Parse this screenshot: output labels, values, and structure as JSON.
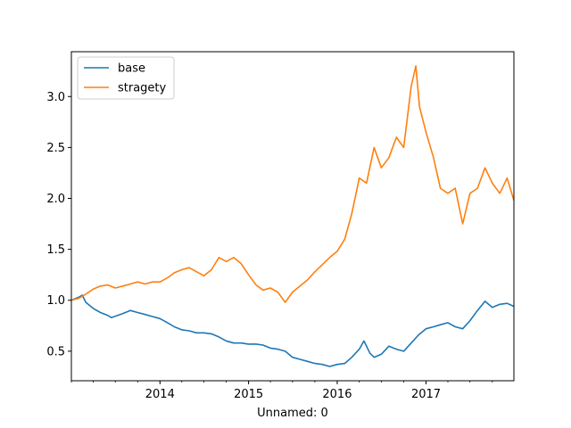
{
  "chart_data": {
    "type": "line",
    "title": "",
    "xlabel": "Unnamed: 0",
    "ylabel": "",
    "xlim": [
      "2013-01-01",
      "2017-12-29"
    ],
    "ylim": [
      0.21,
      3.44
    ],
    "grid": false,
    "legend_position": "top-left",
    "x_tick_labels": [
      "2014",
      "2015",
      "2016",
      "2017"
    ],
    "x_ticks": [
      "2014-01-01",
      "2015-01-01",
      "2016-01-01",
      "2017-01-01"
    ],
    "y_ticks": [
      0.5,
      1.0,
      1.5,
      2.0,
      2.5,
      3.0
    ],
    "y_tick_labels": [
      "0.5",
      "1.0",
      "1.5",
      "2.0",
      "2.5",
      "3.0"
    ],
    "series": [
      {
        "name": "base",
        "color": "#1f77b4",
        "points": [
          [
            "2013-01-01",
            1.0
          ],
          [
            "2013-02-01",
            1.03
          ],
          [
            "2013-02-15",
            1.05
          ],
          [
            "2013-03-01",
            0.98
          ],
          [
            "2013-04-01",
            0.92
          ],
          [
            "2013-05-01",
            0.88
          ],
          [
            "2013-06-01",
            0.85
          ],
          [
            "2013-06-15",
            0.83
          ],
          [
            "2013-08-01",
            0.87
          ],
          [
            "2013-09-01",
            0.9
          ],
          [
            "2013-10-01",
            0.88
          ],
          [
            "2013-11-01",
            0.86
          ],
          [
            "2013-12-01",
            0.84
          ],
          [
            "2014-01-01",
            0.82
          ],
          [
            "2014-02-01",
            0.78
          ],
          [
            "2014-03-01",
            0.74
          ],
          [
            "2014-04-01",
            0.71
          ],
          [
            "2014-05-01",
            0.7
          ],
          [
            "2014-06-01",
            0.68
          ],
          [
            "2014-07-01",
            0.68
          ],
          [
            "2014-08-01",
            0.67
          ],
          [
            "2014-09-01",
            0.64
          ],
          [
            "2014-10-01",
            0.6
          ],
          [
            "2014-11-01",
            0.58
          ],
          [
            "2014-12-01",
            0.58
          ],
          [
            "2015-01-01",
            0.57
          ],
          [
            "2015-02-01",
            0.57
          ],
          [
            "2015-03-01",
            0.56
          ],
          [
            "2015-04-01",
            0.53
          ],
          [
            "2015-05-01",
            0.52
          ],
          [
            "2015-06-01",
            0.5
          ],
          [
            "2015-07-01",
            0.44
          ],
          [
            "2015-08-01",
            0.42
          ],
          [
            "2015-09-01",
            0.4
          ],
          [
            "2015-10-01",
            0.38
          ],
          [
            "2015-11-01",
            0.37
          ],
          [
            "2015-12-01",
            0.35
          ],
          [
            "2016-01-01",
            0.37
          ],
          [
            "2016-02-01",
            0.38
          ],
          [
            "2016-03-01",
            0.44
          ],
          [
            "2016-04-01",
            0.52
          ],
          [
            "2016-04-20",
            0.6
          ],
          [
            "2016-05-15",
            0.48
          ],
          [
            "2016-06-01",
            0.44
          ],
          [
            "2016-07-01",
            0.47
          ],
          [
            "2016-08-01",
            0.55
          ],
          [
            "2016-09-01",
            0.52
          ],
          [
            "2016-10-01",
            0.5
          ],
          [
            "2016-11-01",
            0.58
          ],
          [
            "2016-12-01",
            0.66
          ],
          [
            "2017-01-01",
            0.72
          ],
          [
            "2017-02-01",
            0.74
          ],
          [
            "2017-03-01",
            0.76
          ],
          [
            "2017-04-01",
            0.78
          ],
          [
            "2017-05-01",
            0.74
          ],
          [
            "2017-06-01",
            0.72
          ],
          [
            "2017-07-01",
            0.8
          ],
          [
            "2017-08-01",
            0.9
          ],
          [
            "2017-09-01",
            0.99
          ],
          [
            "2017-10-01",
            0.93
          ],
          [
            "2017-11-01",
            0.96
          ],
          [
            "2017-12-01",
            0.97
          ],
          [
            "2017-12-29",
            0.94
          ]
        ]
      },
      {
        "name": "stragety",
        "color": "#ff7f0e",
        "points": [
          [
            "2013-01-01",
            1.0
          ],
          [
            "2013-02-01",
            1.02
          ],
          [
            "2013-03-01",
            1.06
          ],
          [
            "2013-04-01",
            1.11
          ],
          [
            "2013-05-01",
            1.14
          ],
          [
            "2013-06-01",
            1.15
          ],
          [
            "2013-07-01",
            1.12
          ],
          [
            "2013-08-01",
            1.14
          ],
          [
            "2013-09-01",
            1.16
          ],
          [
            "2013-10-01",
            1.18
          ],
          [
            "2013-11-01",
            1.16
          ],
          [
            "2013-12-01",
            1.18
          ],
          [
            "2014-01-01",
            1.18
          ],
          [
            "2014-02-01",
            1.22
          ],
          [
            "2014-03-01",
            1.27
          ],
          [
            "2014-04-01",
            1.3
          ],
          [
            "2014-05-01",
            1.32
          ],
          [
            "2014-06-01",
            1.28
          ],
          [
            "2014-07-01",
            1.24
          ],
          [
            "2014-08-01",
            1.3
          ],
          [
            "2014-09-01",
            1.42
          ],
          [
            "2014-10-01",
            1.38
          ],
          [
            "2014-11-01",
            1.42
          ],
          [
            "2014-12-01",
            1.36
          ],
          [
            "2015-01-01",
            1.25
          ],
          [
            "2015-02-01",
            1.15
          ],
          [
            "2015-03-01",
            1.1
          ],
          [
            "2015-04-01",
            1.12
          ],
          [
            "2015-05-01",
            1.08
          ],
          [
            "2015-06-01",
            0.98
          ],
          [
            "2015-07-01",
            1.08
          ],
          [
            "2015-08-01",
            1.14
          ],
          [
            "2015-09-01",
            1.2
          ],
          [
            "2015-10-01",
            1.28
          ],
          [
            "2015-11-01",
            1.35
          ],
          [
            "2015-12-01",
            1.42
          ],
          [
            "2016-01-01",
            1.48
          ],
          [
            "2016-02-01",
            1.6
          ],
          [
            "2016-03-01",
            1.85
          ],
          [
            "2016-04-01",
            2.2
          ],
          [
            "2016-05-01",
            2.15
          ],
          [
            "2016-06-01",
            2.5
          ],
          [
            "2016-07-01",
            2.3
          ],
          [
            "2016-08-01",
            2.4
          ],
          [
            "2016-09-01",
            2.6
          ],
          [
            "2016-10-01",
            2.5
          ],
          [
            "2016-11-01",
            3.1
          ],
          [
            "2016-11-20",
            3.3
          ],
          [
            "2016-12-05",
            2.9
          ],
          [
            "2017-01-01",
            2.65
          ],
          [
            "2017-02-01",
            2.4
          ],
          [
            "2017-03-01",
            2.1
          ],
          [
            "2017-04-01",
            2.05
          ],
          [
            "2017-05-01",
            2.1
          ],
          [
            "2017-06-01",
            1.75
          ],
          [
            "2017-07-01",
            2.05
          ],
          [
            "2017-08-01",
            2.1
          ],
          [
            "2017-09-01",
            2.3
          ],
          [
            "2017-10-01",
            2.15
          ],
          [
            "2017-11-01",
            2.05
          ],
          [
            "2017-12-01",
            2.2
          ],
          [
            "2017-12-29",
            1.98
          ]
        ]
      }
    ]
  }
}
